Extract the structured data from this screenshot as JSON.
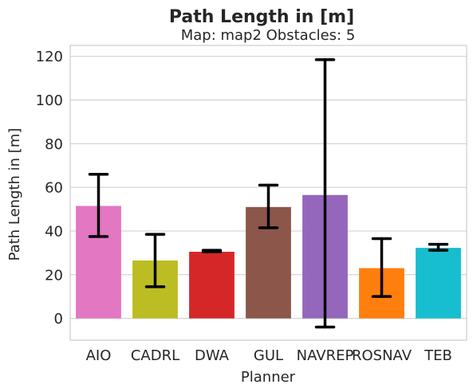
{
  "chart_data": {
    "type": "bar",
    "title": "Path Length in [m]",
    "subtitle": "Map: map2 Obstacles: 5",
    "xlabel": "Planner",
    "ylabel": "Path Length in [m]",
    "ylim": [
      -10,
      125
    ],
    "yticks": [
      0,
      20,
      40,
      60,
      80,
      100,
      120
    ],
    "grid": "y",
    "legend": "none",
    "categories": [
      "AIO",
      "CADRL",
      "DWA",
      "GUL",
      "NAVREP",
      "ROSNAV",
      "TEB"
    ],
    "values": [
      51.5,
      26.5,
      30.5,
      51,
      56.5,
      23,
      32.3
    ],
    "error_low": [
      37.5,
      14.5,
      30.5,
      41.5,
      -4,
      10,
      31.2
    ],
    "error_high": [
      66,
      38.5,
      31.2,
      61,
      118.5,
      36.5,
      33.9
    ],
    "colors": [
      "#e377c2",
      "#bcbd22",
      "#d62728",
      "#8c564b",
      "#9467bd",
      "#ff7f0e",
      "#17becf"
    ]
  }
}
